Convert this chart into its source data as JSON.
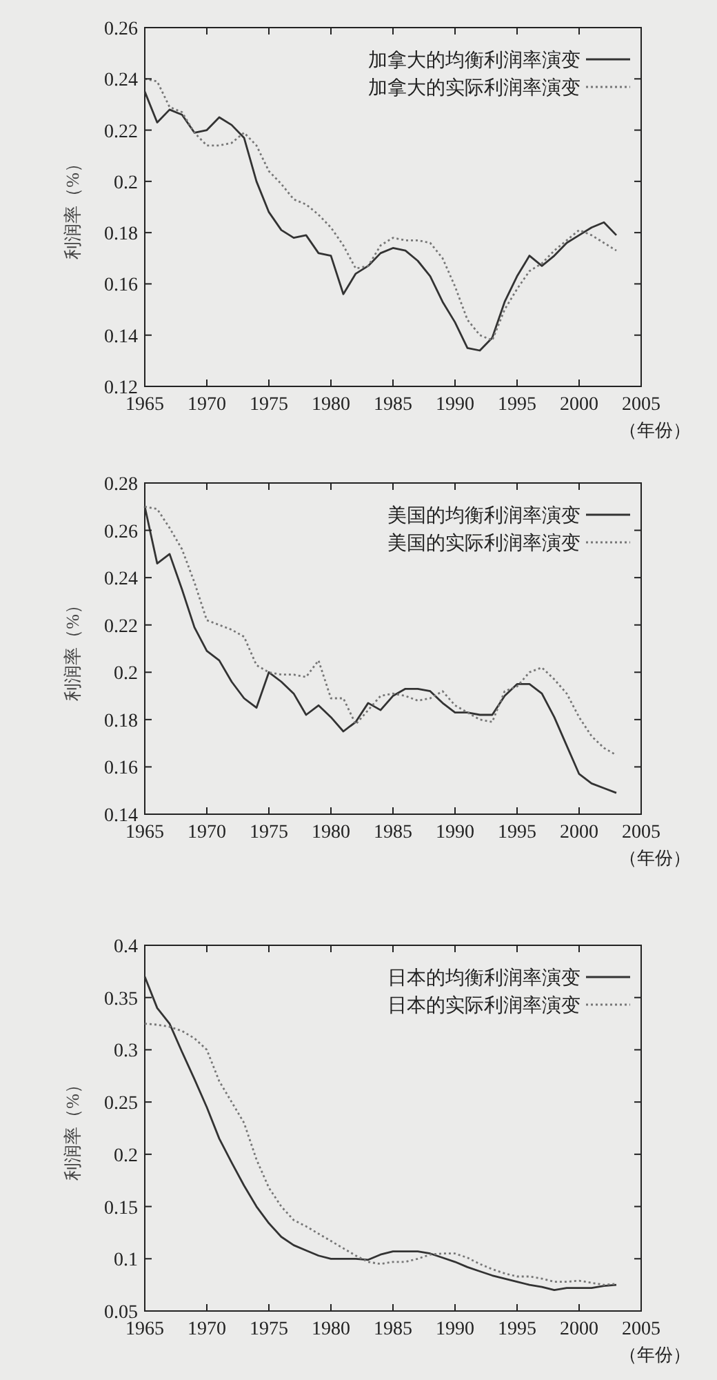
{
  "chart_data": [
    {
      "type": "line",
      "ylabel": "利润率（%）",
      "xlabel": "（年份）",
      "xlim": [
        1965,
        2005
      ],
      "ylim": [
        0.12,
        0.26
      ],
      "xticks": [
        1965,
        1970,
        1975,
        1980,
        1985,
        1990,
        1995,
        2000,
        2005
      ],
      "yticks": [
        0.12,
        0.14,
        0.16,
        0.18,
        0.2,
        0.22,
        0.24,
        0.26
      ],
      "legend": "top right",
      "grid": false,
      "x": [
        1965,
        1966,
        1967,
        1968,
        1969,
        1970,
        1971,
        1972,
        1973,
        1974,
        1975,
        1976,
        1977,
        1978,
        1979,
        1980,
        1981,
        1982,
        1983,
        1984,
        1985,
        1986,
        1987,
        1988,
        1989,
        1990,
        1991,
        1992,
        1993,
        1994,
        1995,
        1996,
        1997,
        1998,
        1999,
        2000,
        2001,
        2002,
        2003
      ],
      "series": [
        {
          "name": "加拿大的均衡利润率演变",
          "color": "#333333",
          "line_style": "solid",
          "values": [
            0.235,
            0.223,
            0.228,
            0.226,
            0.219,
            0.22,
            0.225,
            0.222,
            0.217,
            0.2,
            0.188,
            0.181,
            0.178,
            0.179,
            0.172,
            0.171,
            0.156,
            0.164,
            0.167,
            0.172,
            0.174,
            0.173,
            0.169,
            0.163,
            0.153,
            0.145,
            0.135,
            0.134,
            0.139,
            0.153,
            0.163,
            0.171,
            0.167,
            0.171,
            0.176,
            0.179,
            0.182,
            0.184,
            0.179
          ]
        },
        {
          "name": "加拿大的实际利润率演变",
          "color": "#777777",
          "line_style": "dotted",
          "values": [
            0.24,
            0.239,
            0.229,
            0.227,
            0.219,
            0.214,
            0.214,
            0.215,
            0.219,
            0.214,
            0.204,
            0.199,
            0.193,
            0.191,
            0.187,
            0.182,
            0.175,
            0.166,
            0.167,
            0.175,
            0.178,
            0.177,
            0.177,
            0.176,
            0.17,
            0.159,
            0.146,
            0.14,
            0.138,
            0.15,
            0.158,
            0.165,
            0.168,
            0.173,
            0.177,
            0.181,
            0.179,
            0.176,
            0.173
          ]
        }
      ]
    },
    {
      "type": "line",
      "ylabel": "利润率（%）",
      "xlabel": "（年份）",
      "xlim": [
        1965,
        2005
      ],
      "ylim": [
        0.14,
        0.28
      ],
      "xticks": [
        1965,
        1970,
        1975,
        1980,
        1985,
        1990,
        1995,
        2000,
        2005
      ],
      "yticks": [
        0.14,
        0.16,
        0.18,
        0.2,
        0.22,
        0.24,
        0.26,
        0.28
      ],
      "legend": "top right",
      "grid": false,
      "x": [
        1965,
        1966,
        1967,
        1968,
        1969,
        1970,
        1971,
        1972,
        1973,
        1974,
        1975,
        1976,
        1977,
        1978,
        1979,
        1980,
        1981,
        1982,
        1983,
        1984,
        1985,
        1986,
        1987,
        1988,
        1989,
        1990,
        1991,
        1992,
        1993,
        1994,
        1995,
        1996,
        1997,
        1998,
        1999,
        2000,
        2001,
        2002,
        2003
      ],
      "series": [
        {
          "name": "美国的均衡利润率演变",
          "color": "#333333",
          "line_style": "solid",
          "values": [
            0.27,
            0.246,
            0.25,
            0.235,
            0.219,
            0.209,
            0.205,
            0.196,
            0.189,
            0.185,
            0.2,
            0.196,
            0.191,
            0.182,
            0.186,
            0.181,
            0.175,
            0.179,
            0.187,
            0.184,
            0.19,
            0.193,
            0.193,
            0.192,
            0.187,
            0.183,
            0.183,
            0.182,
            0.182,
            0.19,
            0.195,
            0.195,
            0.191,
            0.181,
            0.169,
            0.157,
            0.153,
            0.151,
            0.149
          ]
        },
        {
          "name": "美国的实际利润率演变",
          "color": "#777777",
          "line_style": "dotted",
          "values": [
            0.27,
            0.269,
            0.261,
            0.252,
            0.238,
            0.222,
            0.22,
            0.218,
            0.215,
            0.203,
            0.2,
            0.199,
            0.199,
            0.198,
            0.205,
            0.189,
            0.189,
            0.178,
            0.184,
            0.19,
            0.191,
            0.19,
            0.188,
            0.189,
            0.192,
            0.186,
            0.183,
            0.18,
            0.179,
            0.192,
            0.194,
            0.2,
            0.202,
            0.197,
            0.191,
            0.181,
            0.173,
            0.168,
            0.165
          ]
        }
      ]
    },
    {
      "type": "line",
      "ylabel": "利润率（%）",
      "xlabel": "（年份）",
      "xlim": [
        1965,
        2005
      ],
      "ylim": [
        0.05,
        0.4
      ],
      "xticks": [
        1965,
        1970,
        1975,
        1980,
        1985,
        1990,
        1995,
        2000,
        2005
      ],
      "yticks": [
        0.05,
        0.1,
        0.15,
        0.2,
        0.25,
        0.3,
        0.35,
        0.4
      ],
      "legend": "top right",
      "grid": false,
      "x": [
        1965,
        1966,
        1967,
        1968,
        1969,
        1970,
        1971,
        1972,
        1973,
        1974,
        1975,
        1976,
        1977,
        1978,
        1979,
        1980,
        1981,
        1982,
        1983,
        1984,
        1985,
        1986,
        1987,
        1988,
        1989,
        1990,
        1991,
        1992,
        1993,
        1994,
        1995,
        1996,
        1997,
        1998,
        1999,
        2000,
        2001,
        2002,
        2003
      ],
      "series": [
        {
          "name": "日本的均衡利润率演变",
          "color": "#333333",
          "line_style": "solid",
          "values": [
            0.37,
            0.34,
            0.325,
            0.298,
            0.272,
            0.245,
            0.215,
            0.192,
            0.17,
            0.15,
            0.134,
            0.121,
            0.113,
            0.108,
            0.103,
            0.1,
            0.1,
            0.1,
            0.099,
            0.104,
            0.107,
            0.107,
            0.107,
            0.105,
            0.101,
            0.097,
            0.092,
            0.088,
            0.084,
            0.081,
            0.078,
            0.075,
            0.073,
            0.07,
            0.072,
            0.072,
            0.072,
            0.074,
            0.075
          ]
        },
        {
          "name": "日本的实际利润率演变",
          "color": "#777777",
          "line_style": "dotted",
          "values": [
            0.325,
            0.324,
            0.322,
            0.318,
            0.311,
            0.3,
            0.27,
            0.25,
            0.23,
            0.195,
            0.168,
            0.15,
            0.137,
            0.131,
            0.124,
            0.117,
            0.11,
            0.103,
            0.097,
            0.095,
            0.097,
            0.097,
            0.1,
            0.104,
            0.105,
            0.105,
            0.101,
            0.095,
            0.09,
            0.086,
            0.083,
            0.083,
            0.081,
            0.078,
            0.078,
            0.079,
            0.077,
            0.075,
            0.076
          ]
        }
      ]
    }
  ]
}
